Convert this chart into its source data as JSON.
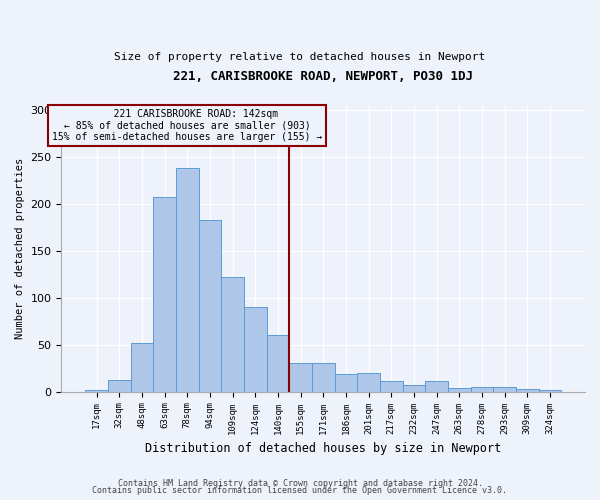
{
  "title": "221, CARISBROOKE ROAD, NEWPORT, PO30 1DJ",
  "subtitle": "Size of property relative to detached houses in Newport",
  "xlabel": "Distribution of detached houses by size in Newport",
  "ylabel": "Number of detached properties",
  "footer_line1": "Contains HM Land Registry data © Crown copyright and database right 2024.",
  "footer_line2": "Contains public sector information licensed under the Open Government Licence v3.0.",
  "annotation_title": "221 CARISBROOKE ROAD: 142sqm",
  "annotation_line2": "← 85% of detached houses are smaller (903)",
  "annotation_line3": "15% of semi-detached houses are larger (155) →",
  "bar_labels": [
    "17sqm",
    "32sqm",
    "48sqm",
    "63sqm",
    "78sqm",
    "94sqm",
    "109sqm",
    "124sqm",
    "140sqm",
    "155sqm",
    "171sqm",
    "186sqm",
    "201sqm",
    "217sqm",
    "232sqm",
    "247sqm",
    "263sqm",
    "278sqm",
    "293sqm",
    "309sqm",
    "324sqm"
  ],
  "bar_values": [
    2,
    12,
    52,
    207,
    238,
    183,
    122,
    90,
    60,
    31,
    31,
    19,
    20,
    11,
    7,
    11,
    4,
    5,
    5,
    3,
    2
  ],
  "bar_color": "#aec6e8",
  "bar_edgecolor": "#5b9bd5",
  "vline_x_idx": 8,
  "vline_color": "#8b0000",
  "annotation_box_edgecolor": "#8b0000",
  "background_color": "#eef2fb",
  "ylim": [
    0,
    305
  ],
  "yticks": [
    0,
    50,
    100,
    150,
    200,
    250,
    300
  ],
  "title_fontsize": 9,
  "subtitle_fontsize": 8
}
